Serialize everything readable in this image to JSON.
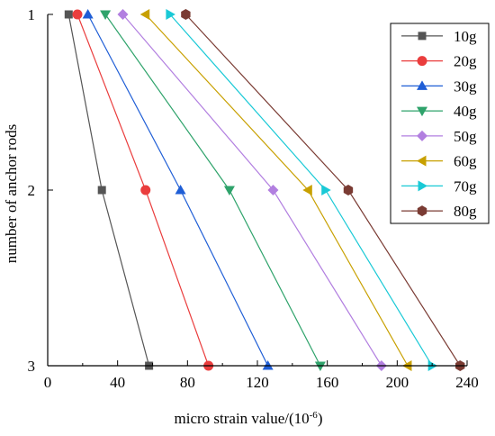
{
  "chart_data": {
    "type": "line",
    "title": "",
    "xlabel": "micro strain value/(10",
    "xlabel_sup": "-6",
    "xlabel_close": ")",
    "ylabel": "number of anchor rods",
    "xlim": [
      0,
      240
    ],
    "ylim": [
      1,
      3
    ],
    "y_reversed": true,
    "x_ticks": [
      0,
      40,
      80,
      120,
      160,
      200,
      240
    ],
    "x_tick_labels": [
      "0",
      "40",
      "80",
      "120",
      "160",
      "200",
      "240"
    ],
    "y_ticks": [
      1,
      2,
      3
    ],
    "y_tick_labels": [
      "1",
      "2",
      "3"
    ],
    "grid": false,
    "legend_position": "top-right",
    "series": [
      {
        "name": "10g",
        "color": "#555555",
        "marker": "square",
        "x": [
          12,
          31,
          58
        ],
        "y": [
          1,
          2,
          3
        ]
      },
      {
        "name": "20g",
        "color": "#ea3d3d",
        "marker": "circle",
        "x": [
          17,
          56,
          92
        ],
        "y": [
          1,
          2,
          3
        ]
      },
      {
        "name": "30g",
        "color": "#1f5ed6",
        "marker": "triangle-up",
        "x": [
          23,
          76,
          126
        ],
        "y": [
          1,
          2,
          3
        ]
      },
      {
        "name": "40g",
        "color": "#2fa36b",
        "marker": "triangle-down",
        "x": [
          33,
          104,
          156
        ],
        "y": [
          1,
          2,
          3
        ]
      },
      {
        "name": "50g",
        "color": "#b27fe0",
        "marker": "diamond",
        "x": [
          43,
          129,
          191
        ],
        "y": [
          1,
          2,
          3
        ]
      },
      {
        "name": "60g",
        "color": "#c8a000",
        "marker": "triangle-left",
        "x": [
          56,
          149,
          206
        ],
        "y": [
          1,
          2,
          3
        ]
      },
      {
        "name": "70g",
        "color": "#19c9d6",
        "marker": "triangle-right",
        "x": [
          70,
          159,
          220
        ],
        "y": [
          1,
          2,
          3
        ]
      },
      {
        "name": "80g",
        "color": "#7a3b33",
        "marker": "hexagon",
        "x": [
          79,
          172,
          236
        ],
        "y": [
          1,
          2,
          3
        ]
      }
    ]
  }
}
